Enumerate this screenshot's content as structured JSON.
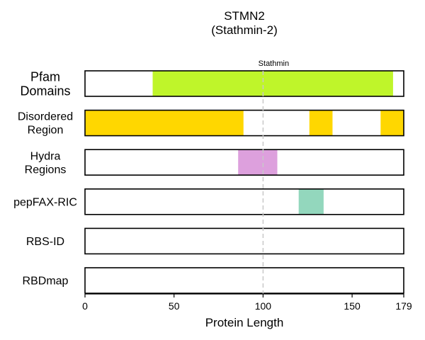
{
  "chart_data": {
    "type": "bar",
    "title": [
      "STMN2",
      "(Stathmin-2)"
    ],
    "xlabel": "Protein Length",
    "xlim": [
      0,
      179
    ],
    "xticks": [
      0,
      50,
      100,
      150,
      179
    ],
    "grid": false,
    "annotations": [
      {
        "text": "Stathmin",
        "x": 100
      }
    ],
    "tracks": [
      {
        "label": [
          "Pfam",
          "Domains"
        ],
        "color": "#bff52a",
        "segments": [
          [
            38,
            173
          ]
        ]
      },
      {
        "label": [
          "Disordered",
          "Region"
        ],
        "color": "#ffd700",
        "segments": [
          [
            0,
            89
          ],
          [
            126,
            139
          ],
          [
            166,
            179
          ]
        ]
      },
      {
        "label": [
          "Hydra",
          "Regions"
        ],
        "color": "#dda0dd",
        "segments": [
          [
            86,
            108
          ]
        ]
      },
      {
        "label": [
          "pepFAX-RIC"
        ],
        "color": "#93d7bd",
        "segments": [
          [
            120,
            134
          ]
        ]
      },
      {
        "label": [
          "RBS-ID"
        ],
        "color": "#ffffff",
        "segments": []
      },
      {
        "label": [
          "RBDmap"
        ],
        "color": "#ffffff",
        "segments": []
      }
    ]
  }
}
